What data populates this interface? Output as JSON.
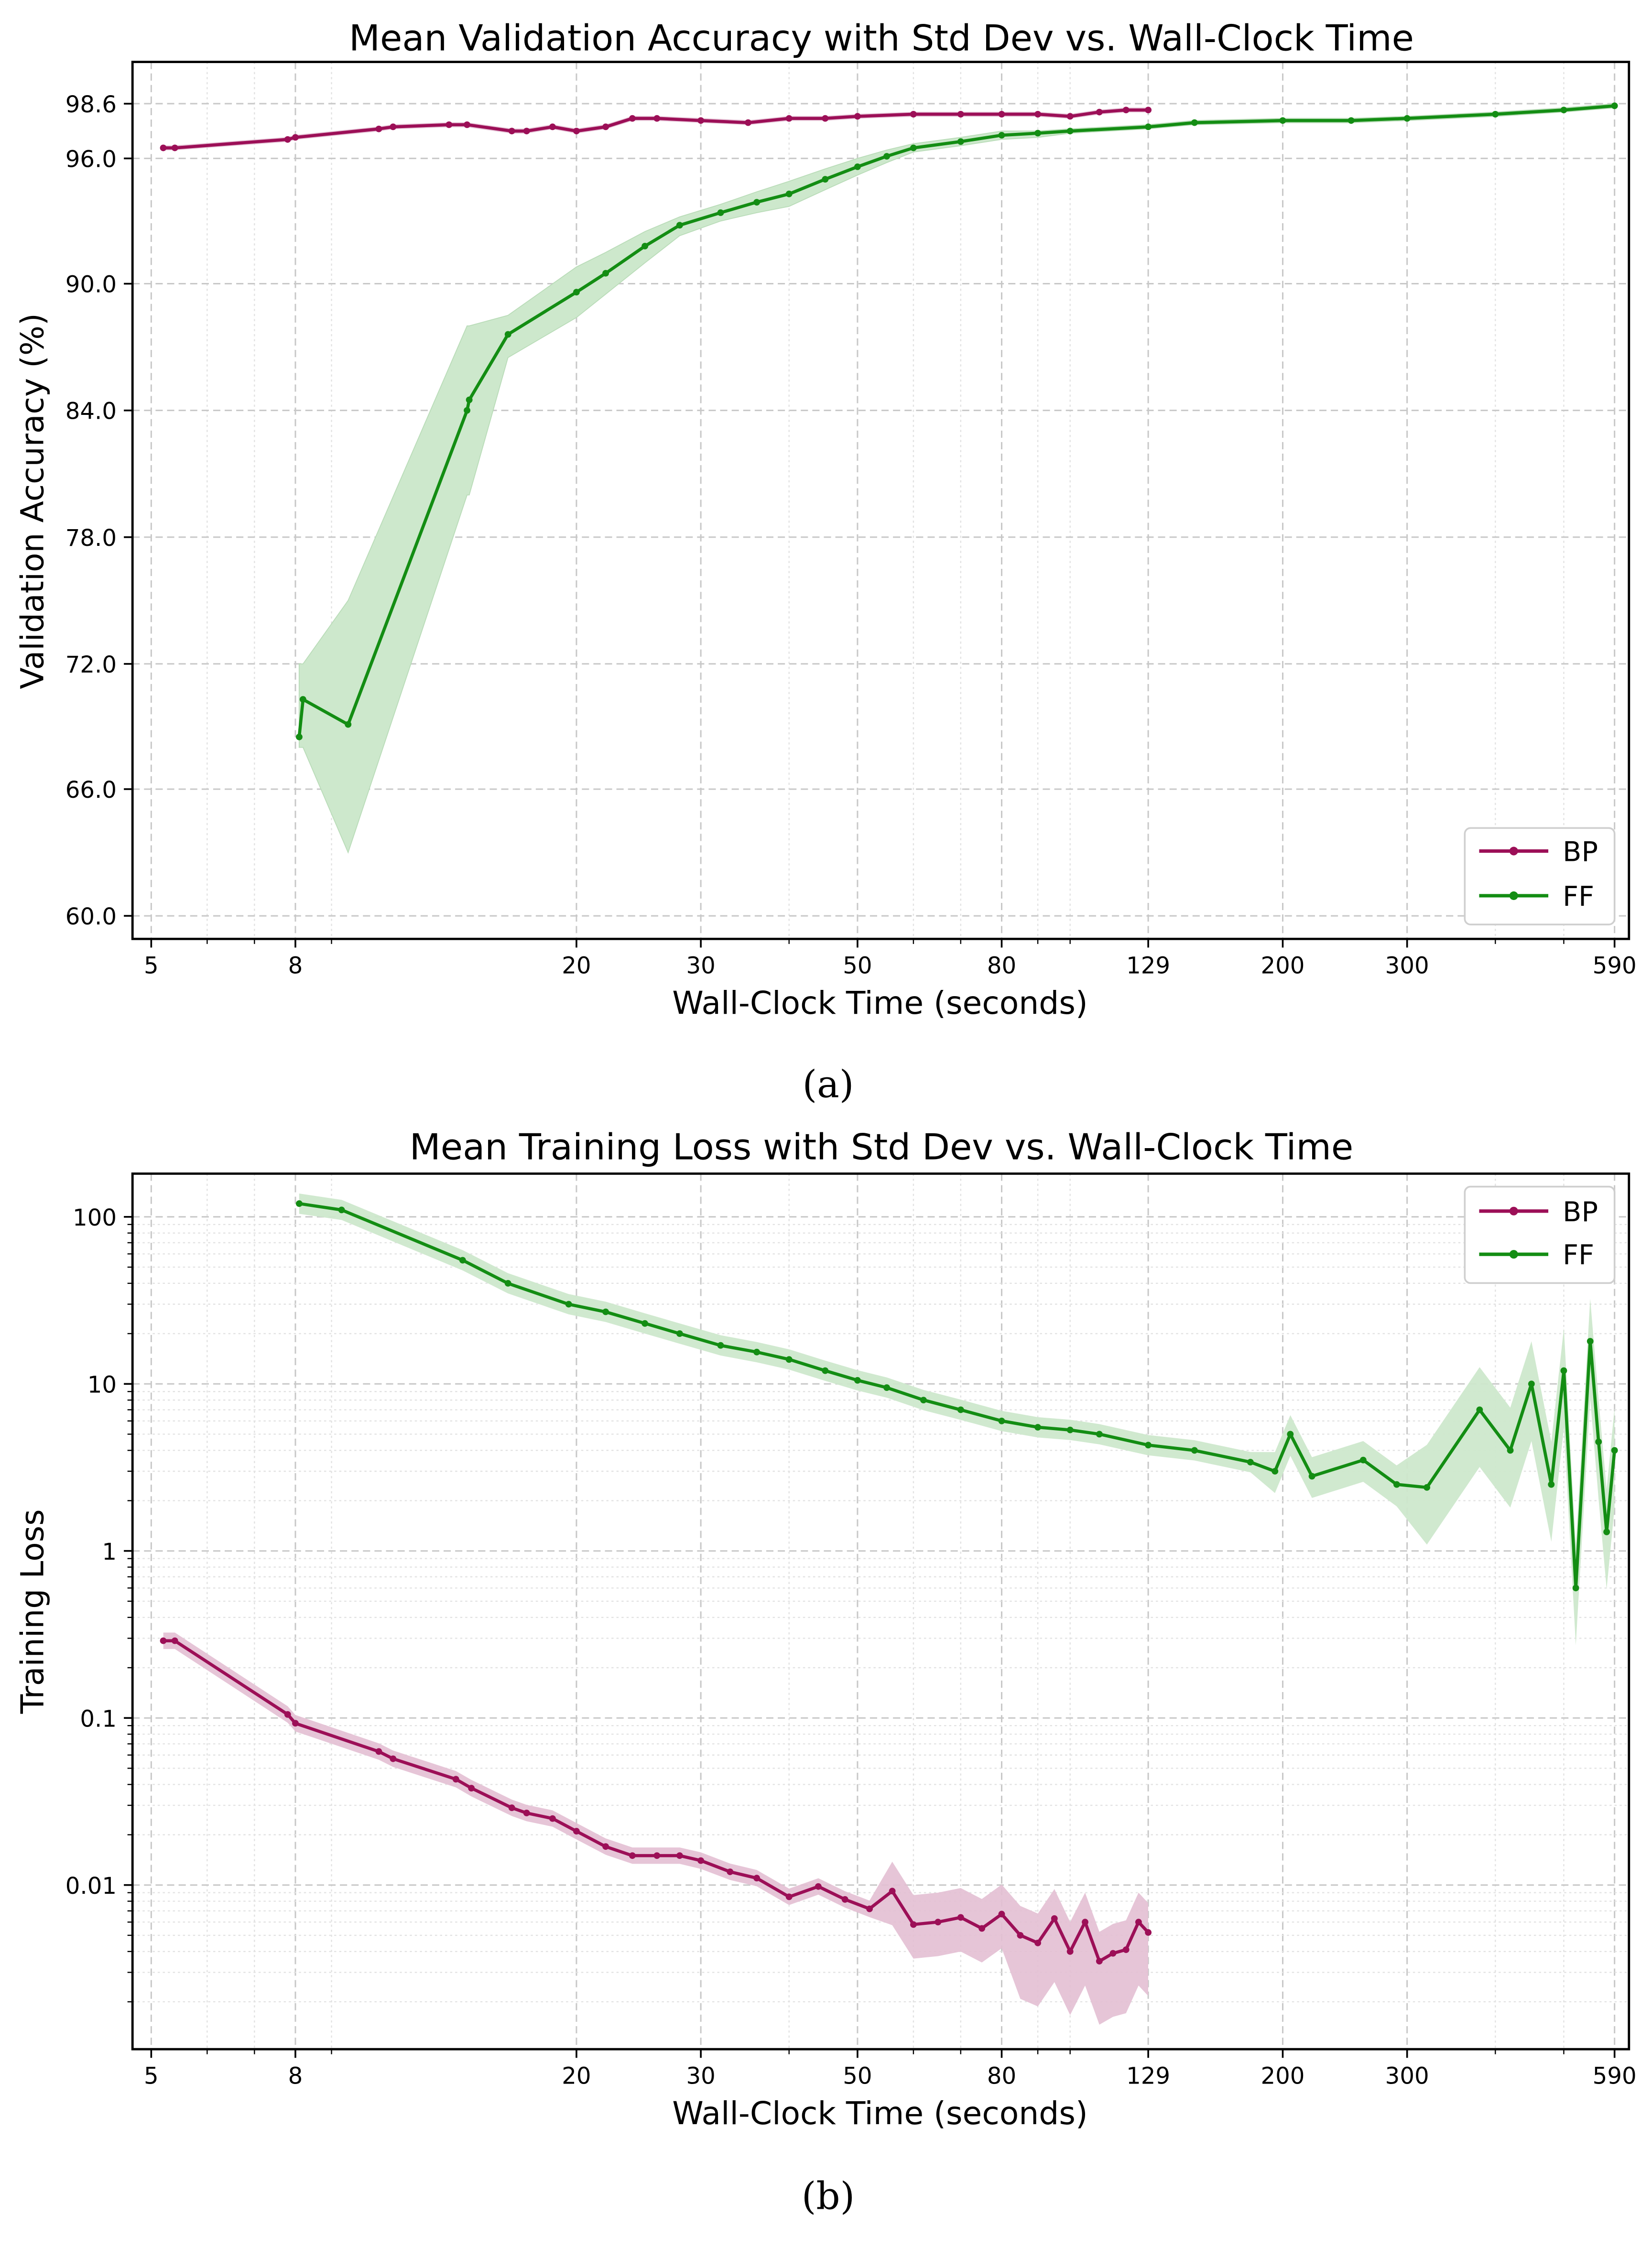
{
  "figure": {
    "caption_a": "(a)",
    "caption_b": "(b)",
    "colors": {
      "BP": "#9c0f57",
      "FF": "#138d13",
      "BP_fill": "#e3bfd3",
      "FF_fill": "#cde8cc"
    }
  },
  "chart_data": [
    {
      "type": "line",
      "title": "Mean Validation Accuracy with Std Dev vs. Wall-Clock Time",
      "xlabel": "Wall-Clock Time (seconds)",
      "ylabel": "Validation Accuracy (%)",
      "x_scale": "log",
      "xlim": [
        4.8,
        600
      ],
      "x_ticks": [
        "5",
        "8",
        "20",
        "30",
        "50",
        "80",
        "129",
        "200",
        "300",
        "590"
      ],
      "y_ticks": [
        "60.0",
        "66.0",
        "72.0",
        "78.0",
        "84.0",
        "90.0",
        "96.0",
        "98.6"
      ],
      "grid": true,
      "legend_position": "lower right",
      "legend": [
        "BP",
        "FF"
      ],
      "series": [
        {
          "name": "BP",
          "x": [
            5.2,
            5.4,
            7.8,
            8.0,
            10.5,
            11.0,
            13.2,
            14.0,
            16.2,
            17.0,
            18.5,
            20.0,
            22.0,
            24.0,
            26.0,
            30.0,
            35.0,
            40.0,
            45.0,
            50.0,
            60.0,
            70.0,
            80.0,
            90.0,
            100.0,
            110.0,
            120.0,
            129.0
          ],
          "y": [
            96.5,
            96.5,
            96.9,
            97.0,
            97.4,
            97.5,
            97.6,
            97.6,
            97.3,
            97.3,
            97.5,
            97.3,
            97.5,
            97.9,
            97.9,
            97.8,
            97.7,
            97.9,
            97.9,
            98.0,
            98.1,
            98.1,
            98.1,
            98.1,
            98.0,
            98.2,
            98.3,
            98.3
          ],
          "std_band": "narrow"
        },
        {
          "name": "FF",
          "x": [
            8.1,
            8.2,
            9.5,
            14.0,
            14.1,
            16.0,
            20.0,
            22.0,
            25.0,
            28.0,
            32.0,
            36.0,
            40.0,
            45.0,
            50.0,
            55.0,
            60.0,
            70.0,
            80.0,
            90.0,
            100.0,
            129.0,
            150.0,
            200.0,
            250.0,
            300.0,
            400.0,
            500.0,
            590.0
          ],
          "y": [
            68.5,
            70.3,
            69.1,
            84.0,
            84.5,
            87.6,
            89.6,
            90.5,
            91.8,
            92.8,
            93.4,
            93.9,
            94.3,
            95.0,
            95.6,
            96.1,
            96.5,
            96.8,
            97.1,
            97.2,
            97.3,
            97.5,
            97.7,
            97.8,
            97.8,
            97.9,
            98.1,
            98.3,
            98.5
          ],
          "y_upper": [
            72.0,
            72.0,
            75.0,
            88.0,
            88.0,
            88.5,
            90.8,
            91.5,
            92.5,
            93.2,
            93.8,
            94.4,
            94.9,
            95.5,
            96.0,
            96.4,
            96.7,
            97.0,
            97.3,
            97.3,
            97.4,
            97.6,
            97.8,
            97.9,
            97.9,
            98.0,
            98.2,
            98.4,
            98.6
          ],
          "y_lower": [
            68.0,
            68.0,
            63.0,
            80.0,
            80.0,
            86.5,
            88.4,
            89.5,
            91.0,
            92.3,
            93.0,
            93.4,
            93.7,
            94.5,
            95.2,
            95.8,
            96.3,
            96.6,
            96.9,
            97.0,
            97.2,
            97.4,
            97.6,
            97.7,
            97.7,
            97.8,
            98.0,
            98.2,
            98.4
          ]
        }
      ]
    },
    {
      "type": "line",
      "title": "Mean Training Loss with Std Dev vs. Wall-Clock Time",
      "xlabel": "Wall-Clock Time (seconds)",
      "ylabel": "Training Loss",
      "x_scale": "log",
      "y_scale": "log",
      "xlim": [
        4.8,
        600
      ],
      "ylim": [
        0.0008,
        180
      ],
      "x_ticks": [
        "5",
        "8",
        "20",
        "30",
        "50",
        "80",
        "129",
        "200",
        "300",
        "590"
      ],
      "y_ticks": [
        "0.01",
        "0.1",
        "1",
        "10",
        "100"
      ],
      "grid": true,
      "legend_position": "upper right",
      "legend": [
        "BP",
        "FF"
      ],
      "series": [
        {
          "name": "BP",
          "x": [
            5.2,
            5.4,
            7.8,
            8.0,
            10.5,
            11.0,
            13.5,
            14.2,
            16.2,
            17.0,
            18.5,
            20.0,
            22.0,
            24.0,
            26.0,
            28.0,
            30.0,
            33.0,
            36.0,
            40.0,
            44.0,
            48.0,
            52.0,
            56.0,
            60.0,
            65.0,
            70.0,
            75.0,
            80.0,
            85.0,
            90.0,
            95.0,
            100.0,
            105.0,
            110.0,
            115.0,
            120.0,
            125.0,
            129.0
          ],
          "y": [
            0.29,
            0.29,
            0.105,
            0.093,
            0.063,
            0.057,
            0.043,
            0.038,
            0.029,
            0.027,
            0.025,
            0.021,
            0.017,
            0.015,
            0.015,
            0.015,
            0.014,
            0.012,
            0.011,
            0.0085,
            0.0098,
            0.0082,
            0.0072,
            0.0092,
            0.0058,
            0.006,
            0.0064,
            0.0055,
            0.0067,
            0.005,
            0.0045,
            0.0063,
            0.004,
            0.006,
            0.0035,
            0.0039,
            0.0041,
            0.006,
            0.0052
          ]
        },
        {
          "name": "FF",
          "x": [
            8.1,
            9.3,
            13.8,
            16.0,
            19.5,
            22.0,
            25.0,
            28.0,
            32.0,
            36.0,
            40.0,
            45.0,
            50.0,
            55.0,
            62.0,
            70.0,
            80.0,
            90.0,
            100.0,
            110.0,
            129.0,
            150.0,
            180.0,
            195.0,
            205.0,
            220.0,
            260.0,
            290.0,
            320.0,
            380.0,
            420.0,
            450.0,
            480.0,
            500.0,
            520.0,
            545.0,
            560.0,
            575.0,
            590.0
          ],
          "y": [
            120,
            110,
            55,
            40,
            30,
            27,
            23,
            20,
            17,
            15.5,
            14,
            12,
            10.5,
            9.5,
            8.0,
            7.0,
            6.0,
            5.5,
            5.3,
            5.0,
            4.3,
            4.0,
            3.4,
            3.0,
            5.0,
            2.8,
            3.5,
            2.5,
            2.4,
            7.0,
            4.0,
            10,
            2.5,
            12,
            0.6,
            18,
            4.5,
            1.3,
            4.0
          ]
        }
      ]
    }
  ]
}
